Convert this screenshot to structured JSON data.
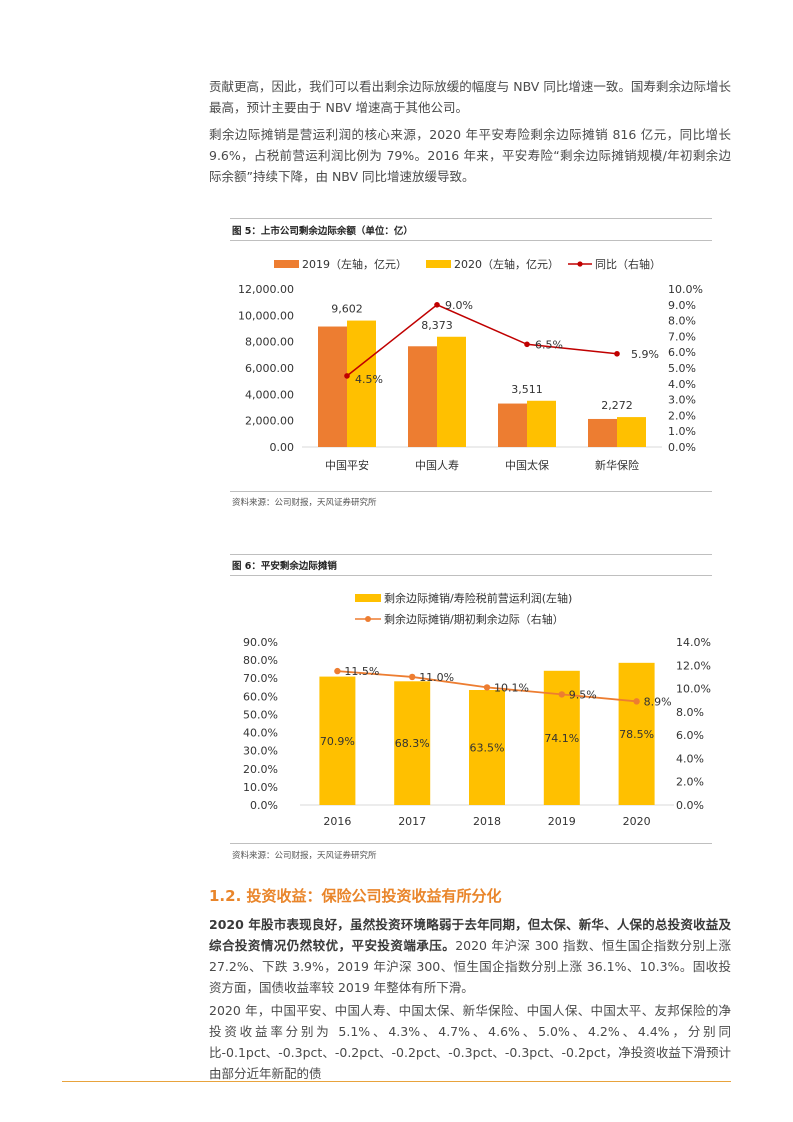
{
  "intro": {
    "p1": "贡献更高，因此，我们可以看出剩余边际放缓的幅度与 NBV 同比增速一致。国寿剩余边际增长最高，预计主要由于 NBV 增速高于其他公司。",
    "p2": "剩余边际摊销是营运利润的核心来源，2020 年平安寿险剩余边际摊销 816 亿元，同比增长 9.6%，占税前营运利润比例为 79%。2016 年来，平安寿险“剩余边际摊销规模/年初剩余边际余额”持续下降，由 NBV 同比增速放缓导致。"
  },
  "figure5": {
    "title": "图 5：上市公司剩余边际余额（单位：亿）",
    "source": "资料来源：公司财报，天风证券研究所"
  },
  "figure6": {
    "title": "图 6：平安剩余边际摊销",
    "source": "资料来源：公司财报，天风证券研究所"
  },
  "section": {
    "title": "1.2. 投资收益：保险公司投资收益有所分化"
  },
  "body": {
    "p3_bold": "2020 年股市表现良好，虽然投资环境略弱于去年同期，但太保、新华、人保的总投资收益及综合投资情况仍然较优，平安投资端承压。",
    "p3_rest": "2020 年沪深 300 指数、恒生国企指数分别上涨 27.2%、下跌 3.9%，2019 年沪深 300、恒生国企指数分别上涨 36.1%、10.3%。固收投资方面，国债收益率较 2019 年整体有所下滑。",
    "p4": "2020 年，中国平安、中国人寿、中国太保、新华保险、中国人保、中国太平、友邦保险的净投资收益率分别为 5.1%、4.3%、4.7%、4.6%、5.0%、4.2%、4.4%，分别同比-0.1pct、-0.3pct、-0.2pct、-0.2pct、-0.3pct、-0.3pct、-0.2pct，净投资收益下滑预计由部分近年新配的债"
  },
  "colors": {
    "orange": "#ed7d31",
    "gold": "#ffc000",
    "line5": "#c00000",
    "line6": "#ed7d31",
    "heading": "#e9852a"
  },
  "chart_data": [
    {
      "type": "bar",
      "categories": [
        "中国平安",
        "中国人寿",
        "中国太保",
        "新华保险"
      ],
      "series": [
        {
          "name": "2019（左轴，亿元）",
          "values": [
            9150,
            7650,
            3300,
            2130
          ]
        },
        {
          "name": "2020（左轴，亿元）",
          "values": [
            9602,
            8373,
            3511,
            2272
          ],
          "labels": [
            "9,602",
            "8,373",
            "3,511",
            "2,272"
          ]
        },
        {
          "name": "同比（右轴）",
          "type": "line",
          "axis": "right",
          "values": [
            4.5,
            9.0,
            6.5,
            5.9
          ],
          "labels": [
            "4.5%",
            "9.0%",
            "6.5%",
            "5.9%"
          ]
        }
      ],
      "left_ticks": [
        "0.00",
        "2,000.00",
        "4,000.00",
        "6,000.00",
        "8,000.00",
        "10,000.00",
        "12,000.00"
      ],
      "right_ticks": [
        "0.0%",
        "1.0%",
        "2.0%",
        "3.0%",
        "4.0%",
        "5.0%",
        "6.0%",
        "7.0%",
        "8.0%",
        "9.0%",
        "10.0%"
      ],
      "ylim_left": [
        0,
        12000
      ],
      "ylim_right": [
        0,
        10
      ],
      "legend": "top"
    },
    {
      "type": "bar",
      "categories": [
        "2016",
        "2017",
        "2018",
        "2019",
        "2020"
      ],
      "series": [
        {
          "name": "剩余边际摊销/寿险税前营运利润(左轴)",
          "values": [
            70.9,
            68.3,
            63.5,
            74.1,
            78.5
          ],
          "labels": [
            "70.9%",
            "68.3%",
            "63.5%",
            "74.1%",
            "78.5%"
          ]
        },
        {
          "name": "剩余边际摊销/期初剩余边际（右轴）",
          "type": "line",
          "axis": "right",
          "values": [
            11.5,
            11.0,
            10.1,
            9.5,
            8.9
          ],
          "labels": [
            "11.5%",
            "11.0%",
            "10.1%",
            "9.5%",
            "8.9%"
          ]
        }
      ],
      "left_ticks": [
        "0.0%",
        "10.0%",
        "20.0%",
        "30.0%",
        "40.0%",
        "50.0%",
        "60.0%",
        "70.0%",
        "80.0%",
        "90.0%"
      ],
      "right_ticks": [
        "0.0%",
        "2.0%",
        "4.0%",
        "6.0%",
        "8.0%",
        "10.0%",
        "12.0%",
        "14.0%"
      ],
      "ylim_left": [
        0,
        90
      ],
      "ylim_right": [
        0,
        14
      ],
      "legend": "top"
    }
  ]
}
